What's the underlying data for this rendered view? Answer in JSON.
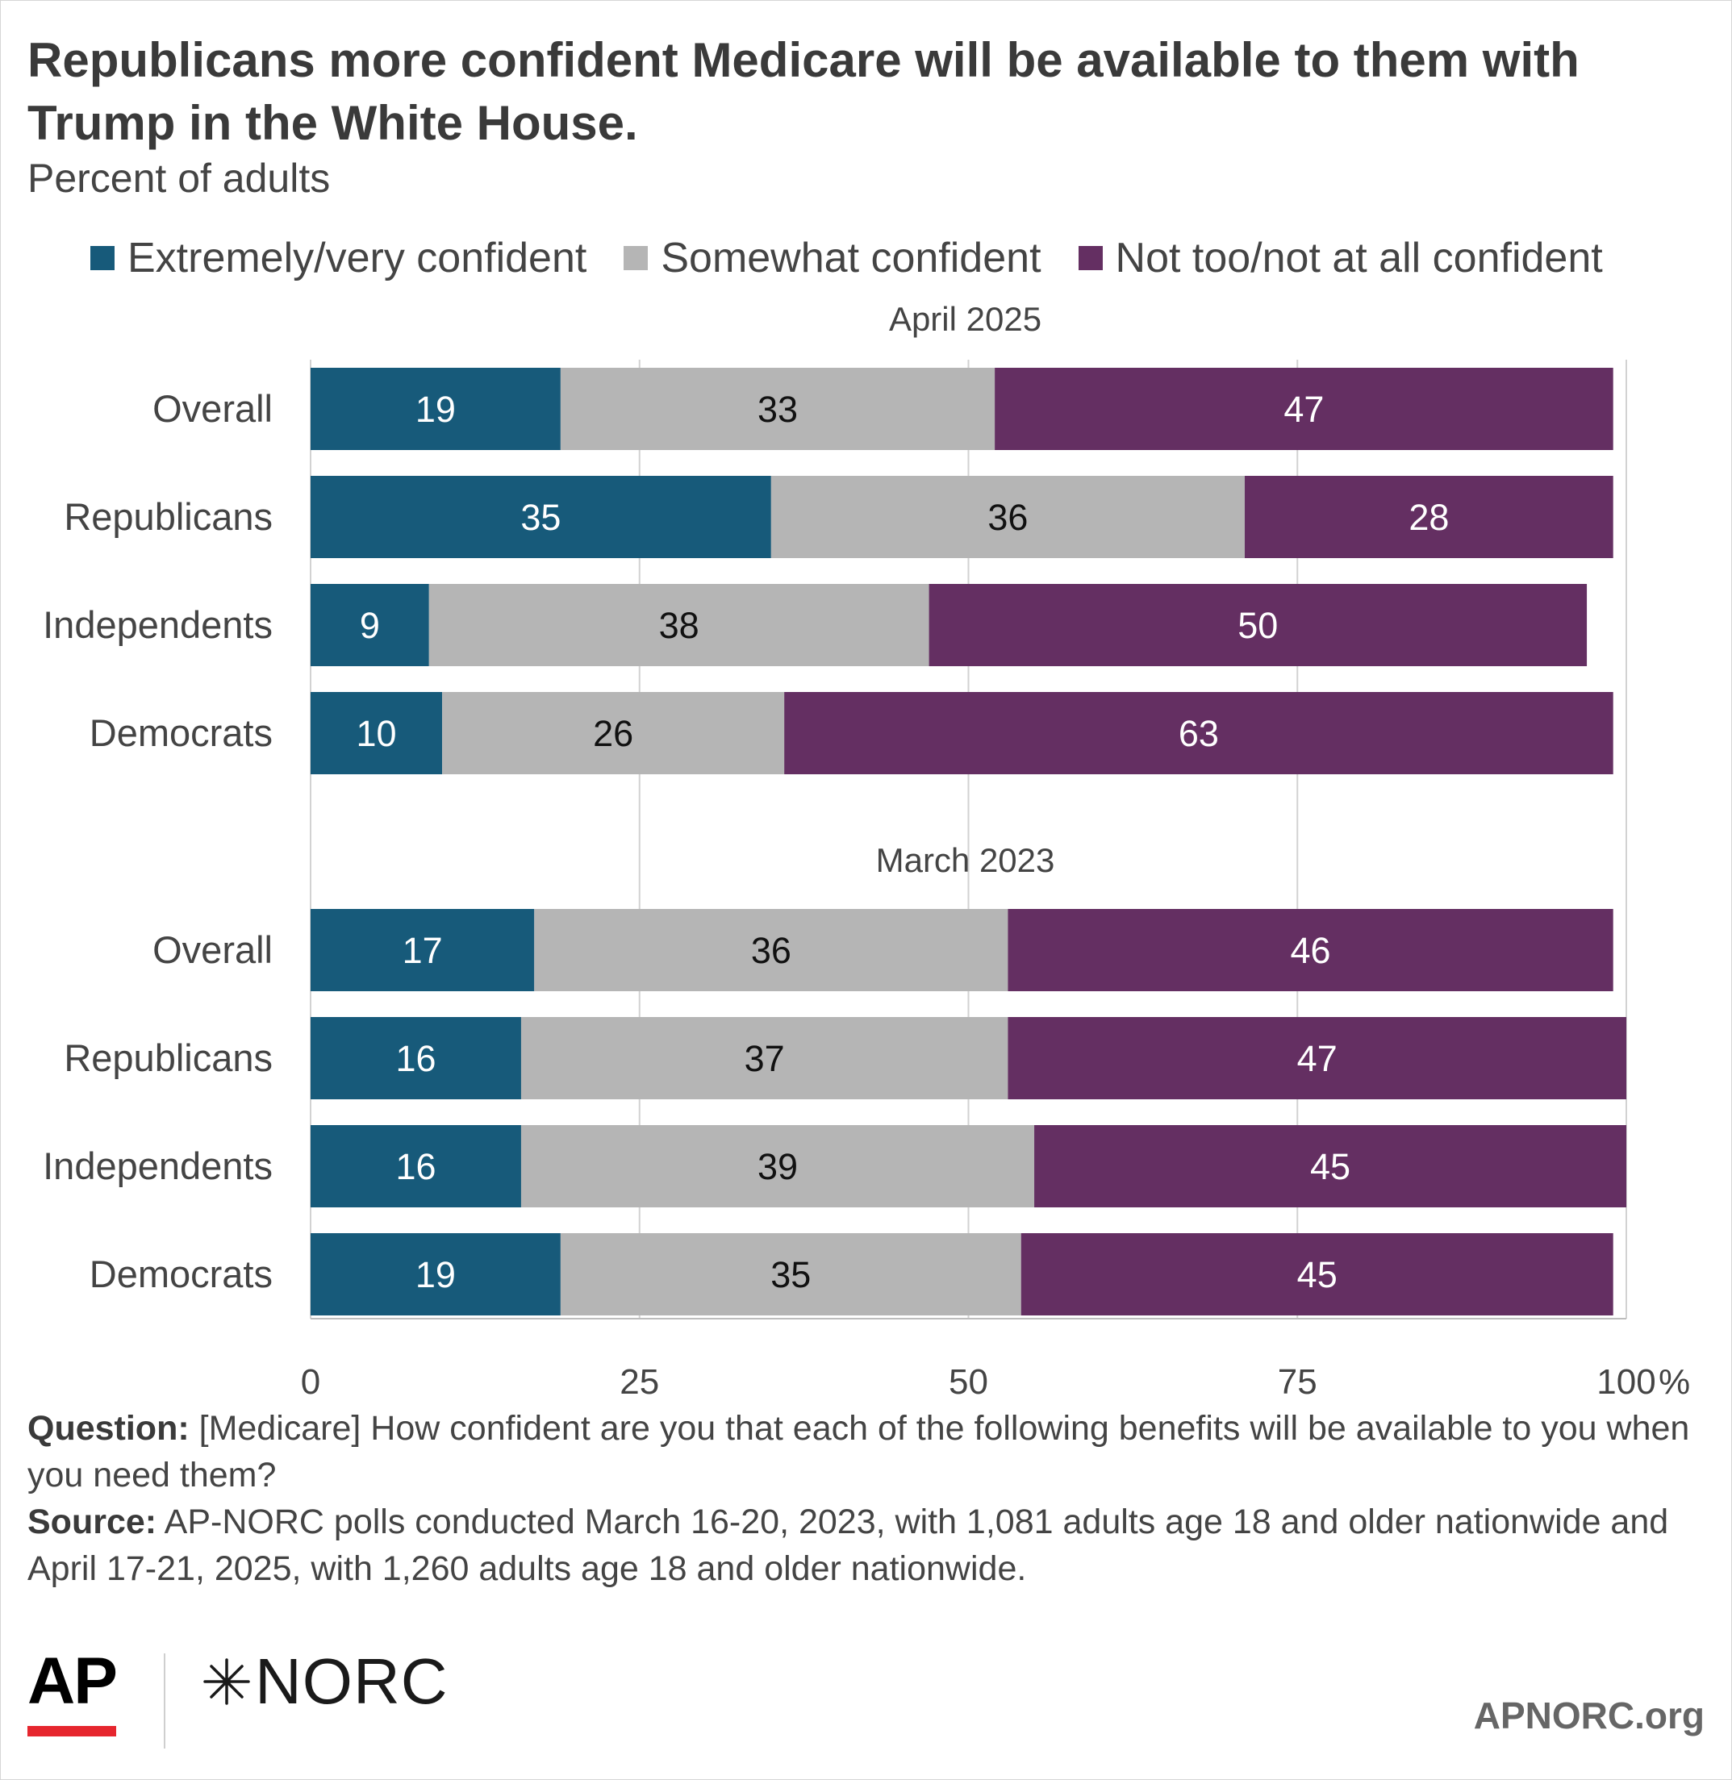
{
  "header": {
    "title": "Republicans more confident Medicare will be available to them with Trump in the White House.",
    "subtitle": "Percent of adults"
  },
  "legend": [
    {
      "label": "Extremely/very confident",
      "color": "#175a7a"
    },
    {
      "label": "Somewhat confident",
      "color": "#b5b5b5"
    },
    {
      "label": "Not too/not at all confident",
      "color": "#642f62"
    }
  ],
  "chart_data": {
    "type": "bar",
    "orientation": "horizontal",
    "stacked": true,
    "xlim": [
      0,
      100
    ],
    "x_ticks": [
      "0",
      "25",
      "50",
      "75",
      "100"
    ],
    "x_unit": "%",
    "grid": true,
    "legend_position": "top",
    "series_names": [
      "Extremely/very confident",
      "Somewhat confident",
      "Not too/not at all confident"
    ],
    "series_colors": [
      "#175a7a",
      "#b5b5b5",
      "#642f62"
    ],
    "label_colors": [
      "#ffffff",
      "#111111",
      "#ffffff"
    ],
    "groups": [
      {
        "label": "April 2025",
        "rows": [
          {
            "category": "Overall",
            "values": [
              19,
              33,
              47
            ]
          },
          {
            "category": "Republicans",
            "values": [
              35,
              36,
              28
            ]
          },
          {
            "category": "Independents",
            "values": [
              9,
              38,
              50
            ]
          },
          {
            "category": "Democrats",
            "values": [
              10,
              26,
              63
            ]
          }
        ]
      },
      {
        "label": "March 2023",
        "rows": [
          {
            "category": "Overall",
            "values": [
              17,
              36,
              46
            ]
          },
          {
            "category": "Republicans",
            "values": [
              16,
              37,
              47
            ]
          },
          {
            "category": "Independents",
            "values": [
              16,
              39,
              45
            ]
          },
          {
            "category": "Democrats",
            "values": [
              19,
              35,
              45
            ]
          }
        ]
      }
    ]
  },
  "notes": {
    "question_label": "Question:",
    "question_text": " [Medicare] How confident are you that each of the following benefits will be available to you when you need them?",
    "source_label": "Source:",
    "source_text": " AP-NORC polls conducted March 16-20, 2023, with 1,081 adults age 18 and older nationwide and April 17-21, 2025, with 1,260 adults age 18 and older nationwide."
  },
  "footer": {
    "logo_ap": "AP",
    "logo_norc": "NORC",
    "site": "APNORC.org"
  }
}
